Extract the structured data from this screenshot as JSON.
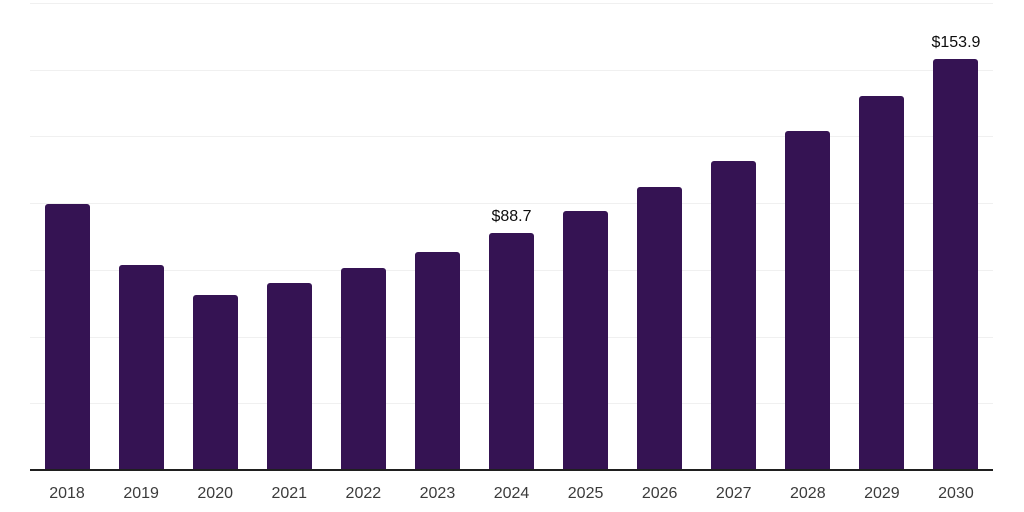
{
  "chart_data": {
    "type": "bar",
    "title": "",
    "xlabel": "",
    "ylabel": "",
    "categories": [
      "2018",
      "2019",
      "2020",
      "2021",
      "2022",
      "2023",
      "2024",
      "2025",
      "2026",
      "2027",
      "2028",
      "2029",
      "2030"
    ],
    "values": [
      99.7,
      77.0,
      65.6,
      70.1,
      75.7,
      81.7,
      88.7,
      96.9,
      106.1,
      115.8,
      127.0,
      140.1,
      153.9
    ],
    "value_prefix": "$",
    "data_labels": [
      {
        "category": "2024",
        "text": "$88.7"
      },
      {
        "category": "2030",
        "text": "$153.9"
      }
    ],
    "ylim": [
      0,
      175
    ],
    "gridline_interval": 25,
    "grid": "horizontal",
    "legend": "none",
    "colors": {
      "bar": "#351353",
      "gridline": "#f0f0f0",
      "axis_line": "#1f1f1f",
      "tick_label": "#3b3b3b",
      "data_label": "#0d0d0d",
      "background": "#ffffff"
    }
  }
}
